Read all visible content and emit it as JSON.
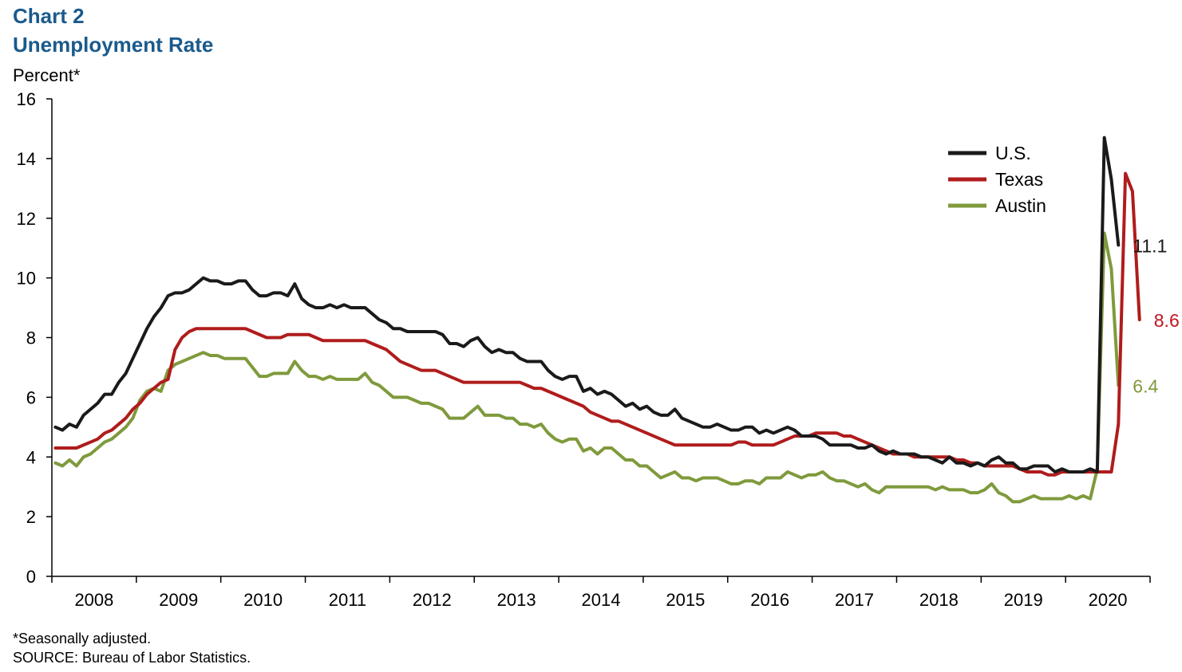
{
  "chart_data": {
    "type": "line",
    "title": "Chart 2",
    "subtitle": "Unemployment Rate",
    "ylabel": "Percent*",
    "ylim": [
      0,
      16
    ],
    "yticks": [
      0,
      2,
      4,
      6,
      8,
      10,
      12,
      14,
      16
    ],
    "x_start": "2008-01",
    "x_end": "2020-06",
    "xtick_labels": [
      "2008",
      "2009",
      "2010",
      "2011",
      "2012",
      "2013",
      "2014",
      "2015",
      "2016",
      "2017",
      "2018",
      "2019",
      "2020"
    ],
    "legend_position": "top-right",
    "series": [
      {
        "name": "U.S.",
        "color": "#1a1a1a",
        "end_label": "11.1",
        "end_label_color": "#1a1a1a",
        "values": [
          5.0,
          4.9,
          5.1,
          5.0,
          5.4,
          5.6,
          5.8,
          6.1,
          6.1,
          6.5,
          6.8,
          7.3,
          7.8,
          8.3,
          8.7,
          9.0,
          9.4,
          9.5,
          9.5,
          9.6,
          9.8,
          10.0,
          9.9,
          9.9,
          9.8,
          9.8,
          9.9,
          9.9,
          9.6,
          9.4,
          9.4,
          9.5,
          9.5,
          9.4,
          9.8,
          9.3,
          9.1,
          9.0,
          9.0,
          9.1,
          9.0,
          9.1,
          9.0,
          9.0,
          9.0,
          8.8,
          8.6,
          8.5,
          8.3,
          8.3,
          8.2,
          8.2,
          8.2,
          8.2,
          8.2,
          8.1,
          7.8,
          7.8,
          7.7,
          7.9,
          8.0,
          7.7,
          7.5,
          7.6,
          7.5,
          7.5,
          7.3,
          7.2,
          7.2,
          7.2,
          6.9,
          6.7,
          6.6,
          6.7,
          6.7,
          6.2,
          6.3,
          6.1,
          6.2,
          6.1,
          5.9,
          5.7,
          5.8,
          5.6,
          5.7,
          5.5,
          5.4,
          5.4,
          5.6,
          5.3,
          5.2,
          5.1,
          5.0,
          5.0,
          5.1,
          5.0,
          4.9,
          4.9,
          5.0,
          5.0,
          4.8,
          4.9,
          4.8,
          4.9,
          5.0,
          4.9,
          4.7,
          4.7,
          4.7,
          4.6,
          4.4,
          4.4,
          4.4,
          4.4,
          4.3,
          4.3,
          4.4,
          4.2,
          4.1,
          4.2,
          4.1,
          4.1,
          4.1,
          4.0,
          4.0,
          3.9,
          3.8,
          4.0,
          3.8,
          3.8,
          3.7,
          3.8,
          3.7,
          3.9,
          4.0,
          3.8,
          3.8,
          3.6,
          3.6,
          3.7,
          3.7,
          3.7,
          3.5,
          3.6,
          3.5,
          3.5,
          3.5,
          3.6,
          3.5,
          14.7,
          13.3,
          11.1
        ]
      },
      {
        "name": "Texas",
        "color": "#b01c1c",
        "end_label": "8.6",
        "end_label_color": "#c0141c",
        "values": [
          4.3,
          4.3,
          4.3,
          4.3,
          4.4,
          4.5,
          4.6,
          4.8,
          4.9,
          5.1,
          5.3,
          5.6,
          5.8,
          6.1,
          6.3,
          6.5,
          6.6,
          7.6,
          8.0,
          8.2,
          8.3,
          8.3,
          8.3,
          8.3,
          8.3,
          8.3,
          8.3,
          8.3,
          8.2,
          8.1,
          8.0,
          8.0,
          8.0,
          8.1,
          8.1,
          8.1,
          8.1,
          8.0,
          7.9,
          7.9,
          7.9,
          7.9,
          7.9,
          7.9,
          7.9,
          7.8,
          7.7,
          7.6,
          7.4,
          7.2,
          7.1,
          7.0,
          6.9,
          6.9,
          6.9,
          6.8,
          6.7,
          6.6,
          6.5,
          6.5,
          6.5,
          6.5,
          6.5,
          6.5,
          6.5,
          6.5,
          6.5,
          6.4,
          6.3,
          6.3,
          6.2,
          6.1,
          6.0,
          5.9,
          5.8,
          5.7,
          5.5,
          5.4,
          5.3,
          5.2,
          5.2,
          5.1,
          5.0,
          4.9,
          4.8,
          4.7,
          4.6,
          4.5,
          4.4,
          4.4,
          4.4,
          4.4,
          4.4,
          4.4,
          4.4,
          4.4,
          4.4,
          4.5,
          4.5,
          4.4,
          4.4,
          4.4,
          4.4,
          4.5,
          4.6,
          4.7,
          4.7,
          4.7,
          4.8,
          4.8,
          4.8,
          4.8,
          4.7,
          4.7,
          4.6,
          4.5,
          4.4,
          4.3,
          4.2,
          4.1,
          4.1,
          4.1,
          4.0,
          4.0,
          4.0,
          4.0,
          4.0,
          4.0,
          3.9,
          3.9,
          3.8,
          3.8,
          3.7,
          3.7,
          3.7,
          3.7,
          3.7,
          3.6,
          3.5,
          3.5,
          3.5,
          3.4,
          3.4,
          3.5,
          3.5,
          3.5,
          3.5,
          3.5,
          3.5,
          3.5,
          3.5,
          5.1,
          13.5,
          12.9,
          8.6
        ]
      },
      {
        "name": "Austin",
        "color": "#7f9a3c",
        "end_label": "6.4",
        "end_label_color": "#7f9a3c",
        "values": [
          3.8,
          3.7,
          3.9,
          3.7,
          4.0,
          4.1,
          4.3,
          4.5,
          4.6,
          4.8,
          5.0,
          5.3,
          5.9,
          6.2,
          6.3,
          6.2,
          6.9,
          7.1,
          7.2,
          7.3,
          7.4,
          7.5,
          7.4,
          7.4,
          7.3,
          7.3,
          7.3,
          7.3,
          7.0,
          6.7,
          6.7,
          6.8,
          6.8,
          6.8,
          7.2,
          6.9,
          6.7,
          6.7,
          6.6,
          6.7,
          6.6,
          6.6,
          6.6,
          6.6,
          6.8,
          6.5,
          6.4,
          6.2,
          6.0,
          6.0,
          6.0,
          5.9,
          5.8,
          5.8,
          5.7,
          5.6,
          5.3,
          5.3,
          5.3,
          5.5,
          5.7,
          5.4,
          5.4,
          5.4,
          5.3,
          5.3,
          5.1,
          5.1,
          5.0,
          5.1,
          4.8,
          4.6,
          4.5,
          4.6,
          4.6,
          4.2,
          4.3,
          4.1,
          4.3,
          4.3,
          4.1,
          3.9,
          3.9,
          3.7,
          3.7,
          3.5,
          3.3,
          3.4,
          3.5,
          3.3,
          3.3,
          3.2,
          3.3,
          3.3,
          3.3,
          3.2,
          3.1,
          3.1,
          3.2,
          3.2,
          3.1,
          3.3,
          3.3,
          3.3,
          3.5,
          3.4,
          3.3,
          3.4,
          3.4,
          3.5,
          3.3,
          3.2,
          3.2,
          3.1,
          3.0,
          3.1,
          2.9,
          2.8,
          3.0,
          3.0,
          3.0,
          3.0,
          3.0,
          3.0,
          3.0,
          2.9,
          3.0,
          2.9,
          2.9,
          2.9,
          2.8,
          2.8,
          2.9,
          3.1,
          2.8,
          2.7,
          2.5,
          2.5,
          2.6,
          2.7,
          2.6,
          2.6,
          2.6,
          2.6,
          2.7,
          2.6,
          2.7,
          2.6,
          3.6,
          11.5,
          10.3,
          6.4
        ]
      }
    ]
  },
  "footnotes": {
    "note": "*Seasonally adjusted.",
    "source": "SOURCE: Bureau of Labor Statistics."
  }
}
